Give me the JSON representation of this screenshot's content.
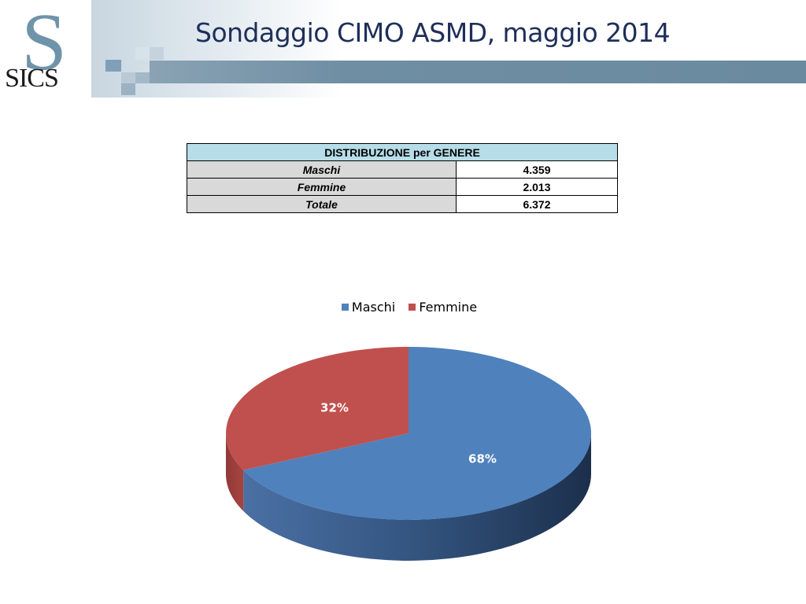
{
  "logo": {
    "letter": "S",
    "text": "SICS"
  },
  "title": "Sondaggio CIMO ASMD, maggio 2014",
  "table": {
    "header": "DISTRIBUZIONE per GENERE",
    "rows": [
      {
        "label": "Maschi",
        "value": "4.359"
      },
      {
        "label": "Femmine",
        "value": "2.013"
      },
      {
        "label": "Totale",
        "value": "6.372"
      }
    ]
  },
  "colors": {
    "maschi": "#4f81bd",
    "femmine": "#c0504d",
    "title": "#1f2f5a",
    "header_bar": "#6f8ea3"
  },
  "chart_data": {
    "type": "pie",
    "categories": [
      "Maschi",
      "Femmine"
    ],
    "values": [
      68,
      32
    ],
    "labels": [
      "68%",
      "32%"
    ],
    "title": "",
    "legend": "top",
    "three_d": true
  }
}
